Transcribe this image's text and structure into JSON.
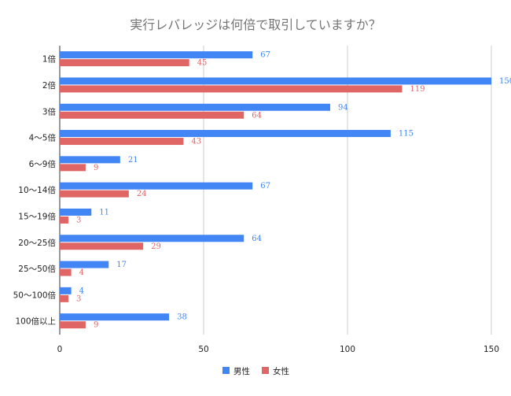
{
  "chart_data": {
    "type": "bar",
    "orientation": "horizontal",
    "title": "実行レバレッジは何倍で取引していますか？",
    "categories": [
      "1倍",
      "2倍",
      "3倍",
      "4〜5倍",
      "6〜9倍",
      "10〜14倍",
      "15〜19倍",
      "20〜25倍",
      "25〜50倍",
      "50〜100倍",
      "100倍以上"
    ],
    "series": [
      {
        "name": "男性",
        "color": "#4285f4",
        "values": [
          67,
          150,
          94,
          115,
          21,
          67,
          11,
          64,
          17,
          4,
          38
        ]
      },
      {
        "name": "女性",
        "color": "#e06666",
        "values": [
          45,
          119,
          64,
          43,
          9,
          24,
          3,
          29,
          4,
          3,
          9
        ]
      }
    ],
    "xlim": [
      0,
      150
    ],
    "xticks": [
      0,
      50,
      100,
      150
    ],
    "grid": true,
    "legend": "bottom",
    "data_labels": true
  }
}
